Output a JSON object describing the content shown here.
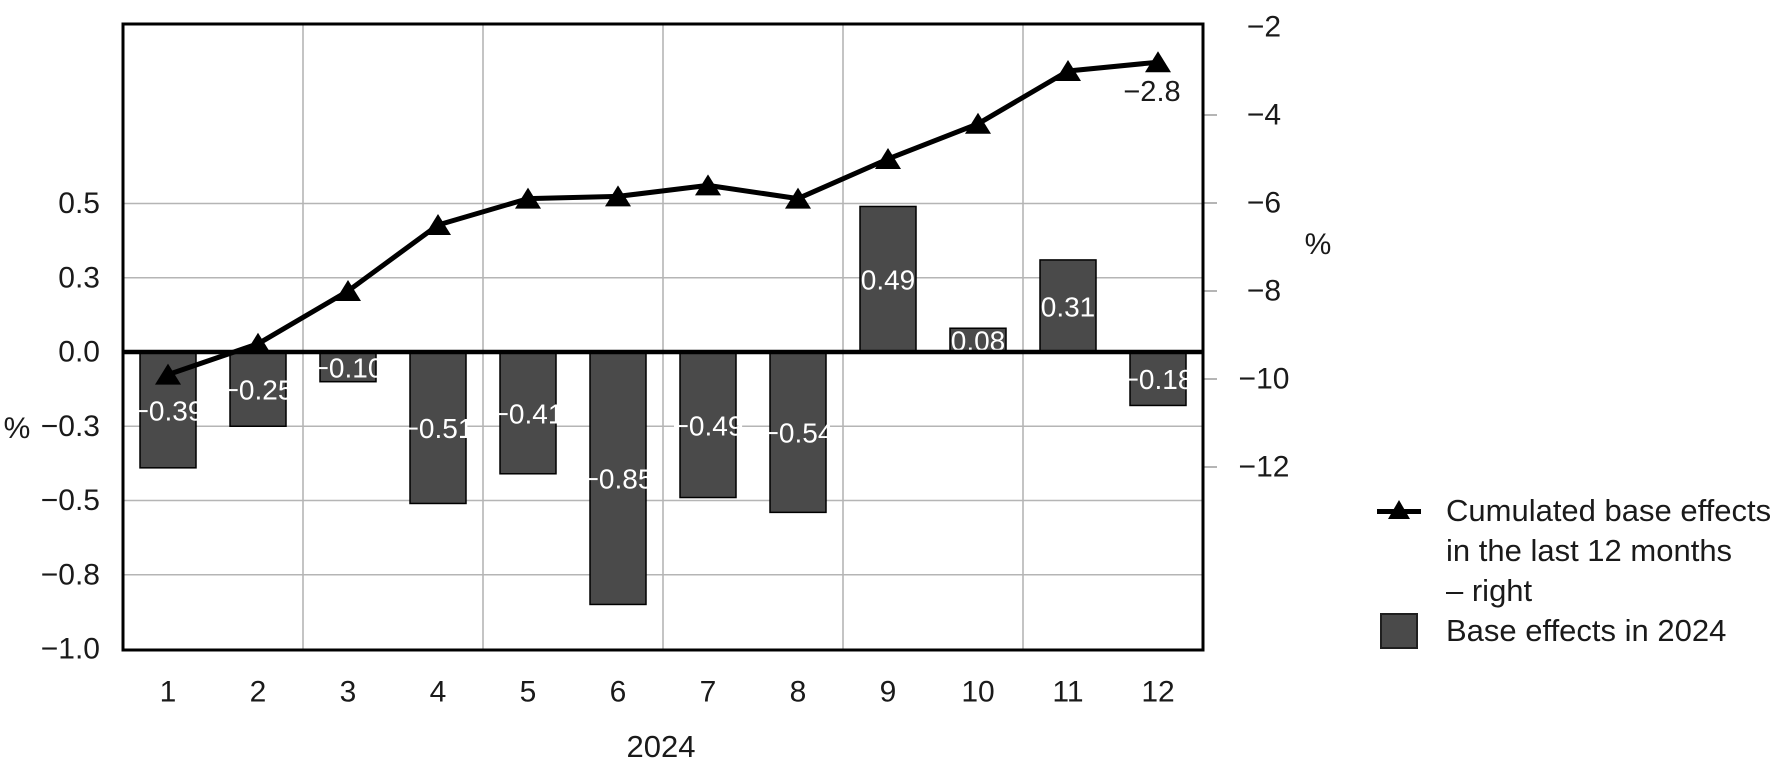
{
  "chart_data": {
    "type": "bar+line",
    "title": "",
    "categories": [
      "1",
      "2",
      "3",
      "4",
      "5",
      "6",
      "7",
      "8",
      "9",
      "10",
      "11",
      "12"
    ],
    "x_axis": {
      "title": "2024"
    },
    "left_axis": {
      "unit": "%",
      "tick_values": [
        0.5,
        0.25,
        0,
        -0.25,
        -0.5,
        -0.75,
        -1.0
      ],
      "tick_labels": [
        "0.5",
        "0.3",
        "0.0",
        "−0.3",
        "−0.5",
        "−0.8",
        "−1.0"
      ],
      "gridline_values": [
        0.5,
        0.25,
        -0.25,
        -0.5,
        -0.75
      ],
      "range": [
        -1.0,
        1.1
      ]
    },
    "right_axis": {
      "unit": "%",
      "tick_values": [
        -2,
        -4,
        -6,
        -8,
        -10,
        -12
      ],
      "tick_labels": [
        "−2",
        "−4",
        "−6",
        "−8",
        "−10",
        "−12"
      ],
      "range": [
        -16.2,
        -2.0
      ]
    },
    "series": [
      {
        "name": "Base effects in 2024",
        "type": "bar",
        "axis": "left",
        "values": [
          -0.39,
          -0.25,
          -0.1,
          -0.51,
          -0.41,
          -0.85,
          -0.49,
          -0.54,
          0.49,
          0.08,
          0.31,
          -0.18
        ],
        "value_labels": [
          "−0.39",
          "−0.25",
          "−0.10",
          "−0.51",
          "−0.41",
          "−0.85",
          "−0.49",
          "−0.54",
          "0.49",
          "0,08",
          "0.31",
          "−0.18"
        ]
      },
      {
        "name": "Cumulated base effects in the last 12 months – right",
        "type": "line",
        "axis": "right",
        "marker": "triangle-up",
        "values": [
          -9.9,
          -9.2,
          -8.0,
          -6.5,
          -5.9,
          -5.85,
          -5.6,
          -5.9,
          -5.0,
          -4.2,
          -3.0,
          -2.8
        ],
        "annotation": {
          "index": 11,
          "text": "−2.8"
        }
      }
    ],
    "legend": {
      "position": "right-middle",
      "items": [
        {
          "marker": "line-triangle",
          "lines": [
            "Cumulated base effects",
            "in the last 12 months",
            "– right"
          ]
        },
        {
          "marker": "square",
          "lines": [
            "Base effects in 2024"
          ]
        }
      ]
    },
    "grid": true,
    "colors": {
      "bar": "#4a4a4a",
      "bar_border": "#000000",
      "line": "#000000",
      "grid": "#b5b5b5",
      "axis": "#000000",
      "bar_label_text": "#ffffff",
      "text": "#1a1a1a",
      "background": "#ffffff"
    }
  }
}
